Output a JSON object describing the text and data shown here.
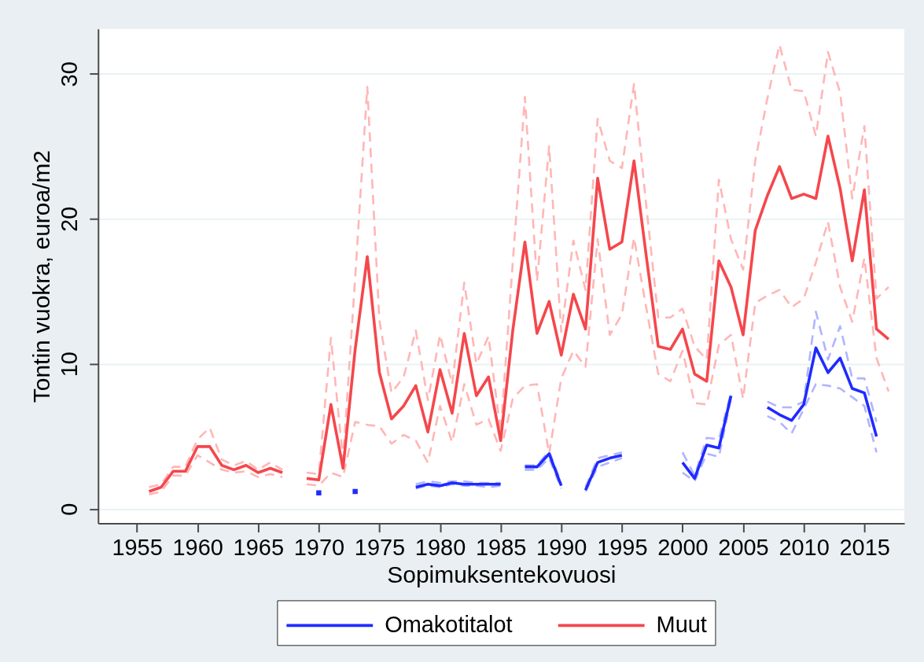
{
  "chart_data": {
    "type": "line",
    "xlabel": "Sopimuksentekovuosi",
    "ylabel": "Tontin vuokra, euroa/m2",
    "x": [
      1956,
      1957,
      1958,
      1959,
      1960,
      1961,
      1962,
      1963,
      1964,
      1965,
      1966,
      1967,
      1968,
      1969,
      1970,
      1971,
      1972,
      1973,
      1974,
      1975,
      1976,
      1977,
      1978,
      1979,
      1980,
      1981,
      1982,
      1983,
      1984,
      1985,
      1986,
      1987,
      1988,
      1989,
      1990,
      1991,
      1992,
      1993,
      1994,
      1995,
      1996,
      1997,
      1998,
      1999,
      2000,
      2001,
      2002,
      2003,
      2004,
      2005,
      2006,
      2007,
      2008,
      2009,
      2010,
      2011,
      2012,
      2013,
      2014,
      2015,
      2016,
      2017
    ],
    "series": [
      {
        "name": "Omakotitalot",
        "color": "#1f2bff",
        "values": [
          null,
          null,
          null,
          null,
          null,
          null,
          null,
          null,
          null,
          null,
          null,
          null,
          null,
          null,
          1.1,
          null,
          null,
          1.2,
          null,
          null,
          null,
          null,
          1.5,
          1.7,
          1.6,
          1.8,
          1.7,
          1.7,
          1.7,
          1.7,
          null,
          2.9,
          2.9,
          3.8,
          1.6,
          null,
          1.3,
          3.2,
          3.5,
          3.7,
          null,
          null,
          null,
          null,
          3.2,
          2.1,
          4.4,
          4.2,
          7.8,
          null,
          null,
          7.0,
          6.5,
          6.1,
          7.2,
          11.1,
          9.4,
          10.4,
          8.3,
          8.0,
          5.0,
          null
        ]
      },
      {
        "name": "Muut",
        "color": "#f5474c",
        "values": [
          1.2,
          1.5,
          2.6,
          2.6,
          4.3,
          4.3,
          3.0,
          2.7,
          3.0,
          2.5,
          2.8,
          2.5,
          null,
          2.1,
          2.0,
          7.2,
          2.8,
          11.0,
          17.4,
          9.4,
          6.2,
          7.1,
          8.5,
          5.3,
          9.6,
          6.6,
          12.1,
          7.8,
          9.1,
          4.7,
          12.3,
          18.4,
          12.1,
          14.3,
          10.6,
          14.8,
          12.4,
          22.8,
          17.9,
          18.4,
          24.0,
          17.5,
          11.2,
          11.0,
          12.4,
          9.3,
          8.8,
          17.1,
          15.3,
          12.0,
          19.2,
          21.6,
          23.6,
          21.4,
          21.7,
          21.4,
          25.7,
          22.1,
          17.1,
          22.0,
          12.4,
          11.7
        ]
      },
      {
        "color": "#b0b4ff",
        "line_style": "dashed",
        "values": [
          null,
          null,
          null,
          null,
          null,
          null,
          null,
          null,
          null,
          null,
          null,
          null,
          null,
          null,
          null,
          null,
          null,
          null,
          null,
          null,
          null,
          null,
          1.4,
          1.6,
          1.5,
          1.7,
          1.6,
          1.6,
          1.5,
          1.6,
          null,
          2.7,
          2.7,
          3.5,
          1.4,
          null,
          1.2,
          2.9,
          3.2,
          3.5,
          null,
          null,
          null,
          null,
          2.5,
          1.9,
          3.8,
          3.6,
          7.6,
          null,
          null,
          6.4,
          6.0,
          5.2,
          6.9,
          8.6,
          8.5,
          8.3,
          7.7,
          7.1,
          3.9,
          null
        ]
      },
      {
        "color": "#b0b4ff",
        "line_style": "dashed",
        "values": [
          null,
          null,
          null,
          null,
          null,
          null,
          null,
          null,
          null,
          null,
          null,
          null,
          null,
          null,
          null,
          null,
          null,
          null,
          null,
          null,
          null,
          null,
          1.7,
          1.9,
          1.8,
          1.9,
          1.9,
          1.8,
          1.8,
          1.8,
          null,
          3.0,
          3.0,
          4.0,
          1.8,
          null,
          1.5,
          3.5,
          3.7,
          3.9,
          null,
          null,
          null,
          null,
          3.9,
          2.3,
          4.9,
          4.8,
          8.0,
          null,
          null,
          7.4,
          7.0,
          7.0,
          7.4,
          13.6,
          10.3,
          12.6,
          9.0,
          9.0,
          6.0,
          null
        ]
      },
      {
        "color": "#ffb6b6",
        "line_style": "dashed",
        "values": [
          1.0,
          1.2,
          2.3,
          2.3,
          3.7,
          3.2,
          2.7,
          2.5,
          2.6,
          2.2,
          2.4,
          2.2,
          null,
          1.7,
          1.6,
          2.5,
          2.2,
          6.0,
          5.8,
          5.7,
          4.5,
          5.1,
          4.7,
          3.2,
          7.1,
          4.6,
          8.6,
          5.8,
          6.2,
          4.0,
          7.6,
          8.5,
          8.6,
          3.8,
          9.0,
          10.9,
          9.8,
          18.6,
          12.0,
          13.4,
          18.7,
          13.9,
          9.3,
          8.8,
          10.9,
          7.3,
          7.2,
          11.3,
          12.0,
          7.6,
          14.2,
          14.7,
          15.1,
          13.9,
          14.5,
          17.0,
          19.8,
          15.3,
          12.9,
          17.3,
          10.4,
          8.1
        ]
      },
      {
        "color": "#ffb6b6",
        "line_style": "dashed",
        "values": [
          1.5,
          1.7,
          2.9,
          2.9,
          4.8,
          5.6,
          3.4,
          3.0,
          3.3,
          2.7,
          3.2,
          2.7,
          null,
          2.5,
          2.4,
          11.8,
          3.4,
          15.9,
          29.1,
          13.0,
          8.0,
          9.1,
          12.3,
          7.5,
          12.0,
          8.6,
          15.6,
          10.0,
          11.9,
          5.3,
          17.0,
          28.4,
          15.7,
          25.0,
          12.2,
          18.5,
          15.1,
          26.9,
          24.0,
          23.5,
          29.3,
          21.0,
          13.2,
          13.2,
          13.8,
          11.2,
          10.3,
          22.7,
          18.6,
          16.5,
          24.0,
          28.3,
          32.0,
          28.9,
          28.8,
          25.7,
          31.5,
          28.7,
          21.4,
          26.4,
          14.5,
          15.3
        ]
      }
    ],
    "xlim": [
      1951.8,
      2018.3
    ],
    "xticks": [
      1955,
      1960,
      1965,
      1970,
      1975,
      1980,
      1985,
      1990,
      1995,
      2000,
      2005,
      2010,
      2015
    ],
    "ylim": [
      -1.0,
      33.1
    ],
    "yticks": [
      0,
      10,
      20,
      30
    ],
    "grid": "y",
    "legend": "bottom",
    "line_style": "solid"
  }
}
